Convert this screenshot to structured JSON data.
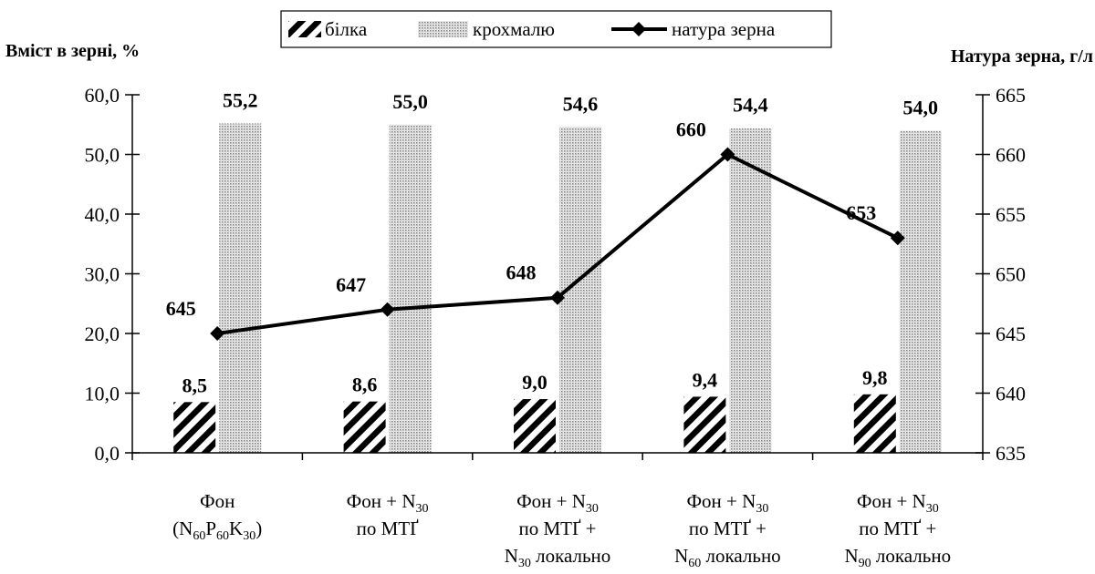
{
  "chart_data": {
    "type": "bar",
    "left_axis_title": "Вміст в зерні, %",
    "right_axis_title": "Натура зерна, г/л",
    "categories": [
      [
        "Фон",
        "(N60P60K30)"
      ],
      [
        "Фон + N30",
        "по МТҐ"
      ],
      [
        "Фон + N30",
        "по МТҐ +",
        "N30 локально"
      ],
      [
        "Фон + N30",
        "по МТҐ +",
        "N60 локально"
      ],
      [
        "Фон + N30",
        "по МТҐ +",
        "N90 локально"
      ]
    ],
    "series": [
      {
        "name": "білка",
        "type": "bar",
        "axis": "left",
        "pattern": "diagonal-stripes",
        "color": "#000000",
        "values": [
          8.5,
          8.6,
          9.0,
          9.4,
          9.8
        ],
        "labels": [
          "8,5",
          "8,6",
          "9,0",
          "9,4",
          "9,8"
        ]
      },
      {
        "name": "крохмалю",
        "type": "bar",
        "axis": "left",
        "pattern": "dots",
        "color": "#9a9a9a",
        "values": [
          55.2,
          55.0,
          54.6,
          54.4,
          54.0
        ],
        "labels": [
          "55,2",
          "55,0",
          "54,6",
          "54,4",
          "54,0"
        ]
      },
      {
        "name": "натура зерна",
        "type": "line",
        "axis": "right",
        "marker": "diamond",
        "color": "#000000",
        "values": [
          645,
          647,
          648,
          660,
          653
        ],
        "labels": [
          "645",
          "647",
          "648",
          "660",
          "653"
        ]
      }
    ],
    "left_axis": {
      "min": 0,
      "max": 60,
      "step": 10,
      "tick_labels": [
        "0,0",
        "10,0",
        "20,0",
        "30,0",
        "40,0",
        "50,0",
        "60,0"
      ]
    },
    "right_axis": {
      "min": 635,
      "max": 665,
      "step": 5,
      "tick_labels": [
        "635",
        "640",
        "645",
        "650",
        "655",
        "660",
        "665"
      ]
    },
    "legend": "top-center",
    "grid": false
  }
}
